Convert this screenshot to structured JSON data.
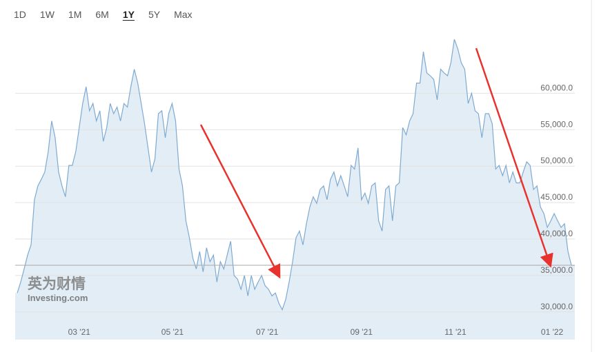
{
  "range_buttons": [
    "1D",
    "1W",
    "1M",
    "6M",
    "1Y",
    "5Y",
    "Max"
  ],
  "active_range": 4,
  "watermark": [
    "英为财情",
    "Investing.com"
  ],
  "chart_data": {
    "type": "area",
    "color": "#7eaad2",
    "fill": "#e3edf5",
    "grid": true,
    "values": [
      32600,
      34100,
      35900,
      37800,
      39200,
      45400,
      47300,
      48200,
      49200,
      52000,
      56200,
      53900,
      49200,
      47300,
      45800,
      50100,
      50100,
      52000,
      55300,
      58600,
      60900,
      57600,
      58600,
      56200,
      57600,
      53400,
      55300,
      58600,
      57200,
      58100,
      56200,
      58600,
      58100,
      60900,
      63300,
      61400,
      58600,
      55800,
      52500,
      49200,
      51000,
      57200,
      57600,
      53900,
      57200,
      58600,
      56200,
      49600,
      47300,
      42500,
      40200,
      37400,
      35900,
      38300,
      35500,
      38800,
      36900,
      37800,
      34100,
      36900,
      35900,
      37800,
      39700,
      35000,
      34500,
      33100,
      35000,
      32200,
      35000,
      33100,
      34100,
      35000,
      33600,
      33100,
      32200,
      32600,
      31200,
      30300,
      31700,
      34100,
      36900,
      40200,
      41100,
      39200,
      42100,
      44400,
      45800,
      44900,
      46800,
      47300,
      45400,
      48200,
      49200,
      47300,
      48700,
      47300,
      45800,
      50100,
      49600,
      52500,
      45400,
      46300,
      44900,
      47300,
      47700,
      42500,
      41100,
      46800,
      47300,
      42500,
      47300,
      47700,
      55300,
      54300,
      56200,
      57200,
      61400,
      61400,
      65700,
      62800,
      62400,
      61900,
      59100,
      63300,
      62800,
      62400,
      64200,
      67400,
      66100,
      64200,
      63300,
      58600,
      60000,
      57600,
      57200,
      53900,
      57200,
      57200,
      55800,
      49600,
      50100,
      48700,
      50100,
      47700,
      49200,
      47700,
      47700,
      49200,
      50600,
      50100,
      46800,
      47300,
      44400,
      43500,
      41600,
      42500,
      43500,
      42500,
      41600,
      42100,
      38300,
      36400,
      36400
    ],
    "xlim": [
      0,
      162
    ],
    "xticks": [
      {
        "value": 18,
        "label": "03 '21"
      },
      {
        "value": 45.1,
        "label": "05 '21"
      },
      {
        "value": 72.6,
        "label": "07 '21"
      },
      {
        "value": 100,
        "label": "09 '21"
      },
      {
        "value": 127.3,
        "label": "11 '21"
      },
      {
        "value": 155.4,
        "label": "01 '22"
      }
    ],
    "ylim": [
      26200,
      67600
    ],
    "yticks": [
      {
        "value": 30000,
        "label": "30,000.0"
      },
      {
        "value": 35000,
        "label": "35,000.0"
      },
      {
        "value": 40000,
        "label": "40,000.0"
      },
      {
        "value": 45000,
        "label": "45,000.0"
      },
      {
        "value": 50000,
        "label": "50,000.0"
      },
      {
        "value": 55000,
        "label": "55,000.0"
      },
      {
        "value": 60000,
        "label": "60,000.0"
      }
    ],
    "reference_line": 36400
  }
}
